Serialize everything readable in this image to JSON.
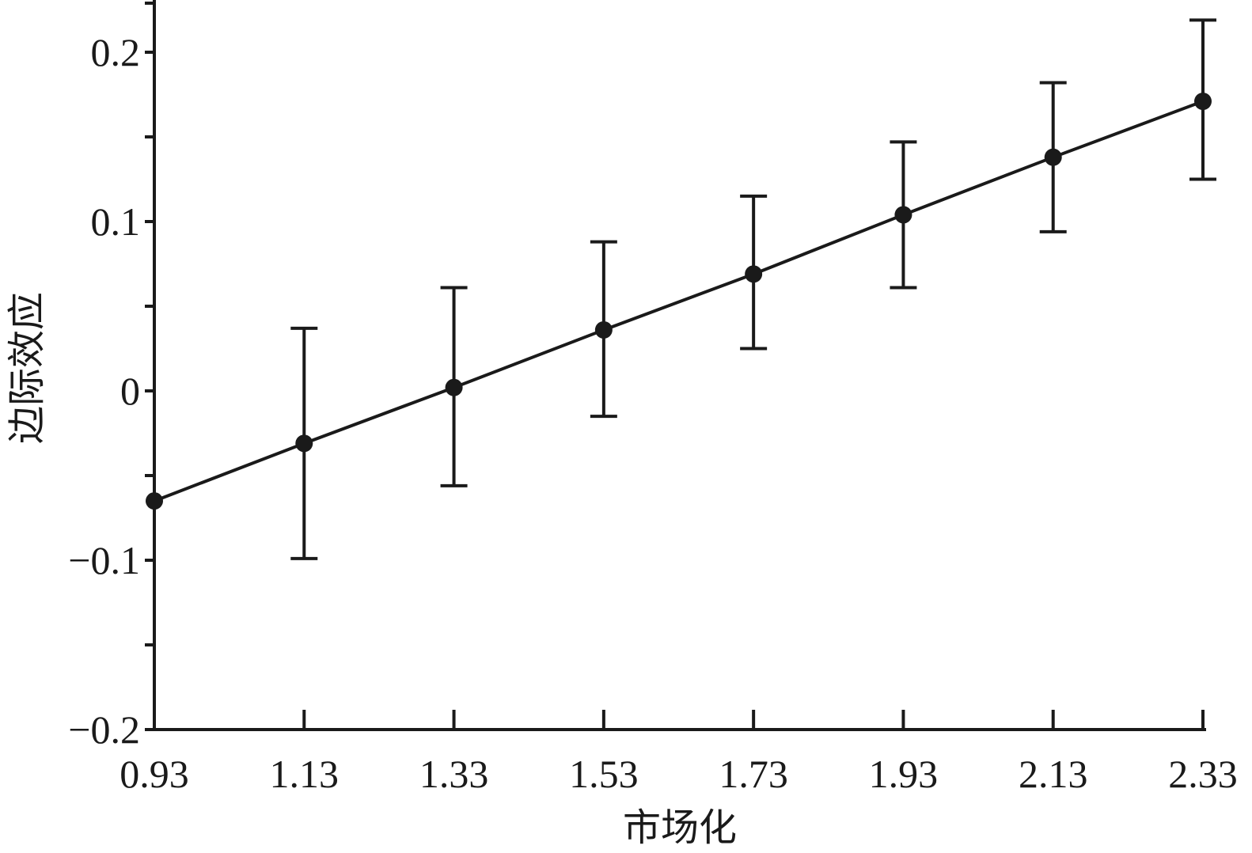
{
  "chart_data": {
    "type": "line",
    "xlabel": "市场化",
    "ylabel": "边际效应",
    "x_ticks": [
      "0.93",
      "1.13",
      "1.33",
      "1.53",
      "1.73",
      "1.93",
      "2.13",
      "2.33"
    ],
    "y_ticks": [
      "−0.2",
      "−0.1",
      "0",
      "0.1",
      "0.2"
    ],
    "xlim": [
      0.93,
      2.33
    ],
    "ylim": [
      -0.2,
      0.2
    ],
    "grid": false,
    "legend": "none",
    "series": [
      {
        "x": [
          0.93,
          1.13,
          1.33,
          1.53,
          1.73,
          1.93,
          2.13,
          2.33
        ],
        "y": [
          -0.065,
          -0.031,
          0.002,
          0.036,
          0.069,
          0.104,
          0.138,
          0.171
        ],
        "error_lower": [
          null,
          -0.099,
          -0.056,
          -0.015,
          0.025,
          0.061,
          0.094,
          0.125
        ],
        "error_upper": [
          null,
          0.037,
          0.061,
          0.088,
          0.115,
          0.147,
          0.182,
          0.219
        ]
      }
    ],
    "colors": {
      "line": "#1a1a1a",
      "axis": "#1a1a1a"
    }
  }
}
